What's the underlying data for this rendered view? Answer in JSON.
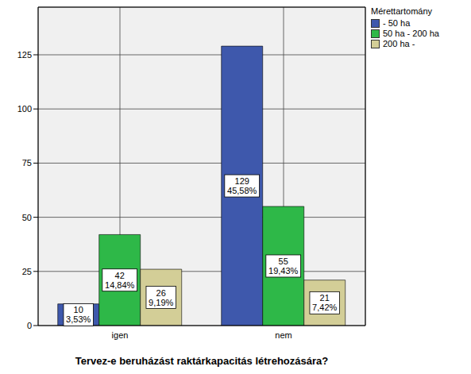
{
  "chart_data": {
    "type": "bar",
    "x_label": "Tervez-e beruházást raktárkapacitás létrehozására?",
    "legend_title": "Mérettartomány",
    "categories": [
      "igen",
      "nem"
    ],
    "series": [
      {
        "name": "- 50 ha",
        "color": "#3E58AC",
        "values": [
          10,
          129
        ],
        "value_labels": [
          "10\n3,53%",
          "129\n45,58%"
        ]
      },
      {
        "name": "50 ha - 200 ha",
        "color": "#2EB848",
        "values": [
          42,
          55
        ],
        "value_labels": [
          "42\n14,84%",
          "55\n19,43%"
        ]
      },
      {
        "name": "200 ha -",
        "color": "#D3CE97",
        "values": [
          26,
          21
        ],
        "value_labels": [
          "26\n9,19%",
          "21\n7,42%"
        ]
      }
    ],
    "ylim": [
      0,
      147
    ],
    "yticks": [
      0,
      25,
      50,
      75,
      100,
      125
    ],
    "grid": true,
    "legend": "right",
    "data_labels": true
  }
}
